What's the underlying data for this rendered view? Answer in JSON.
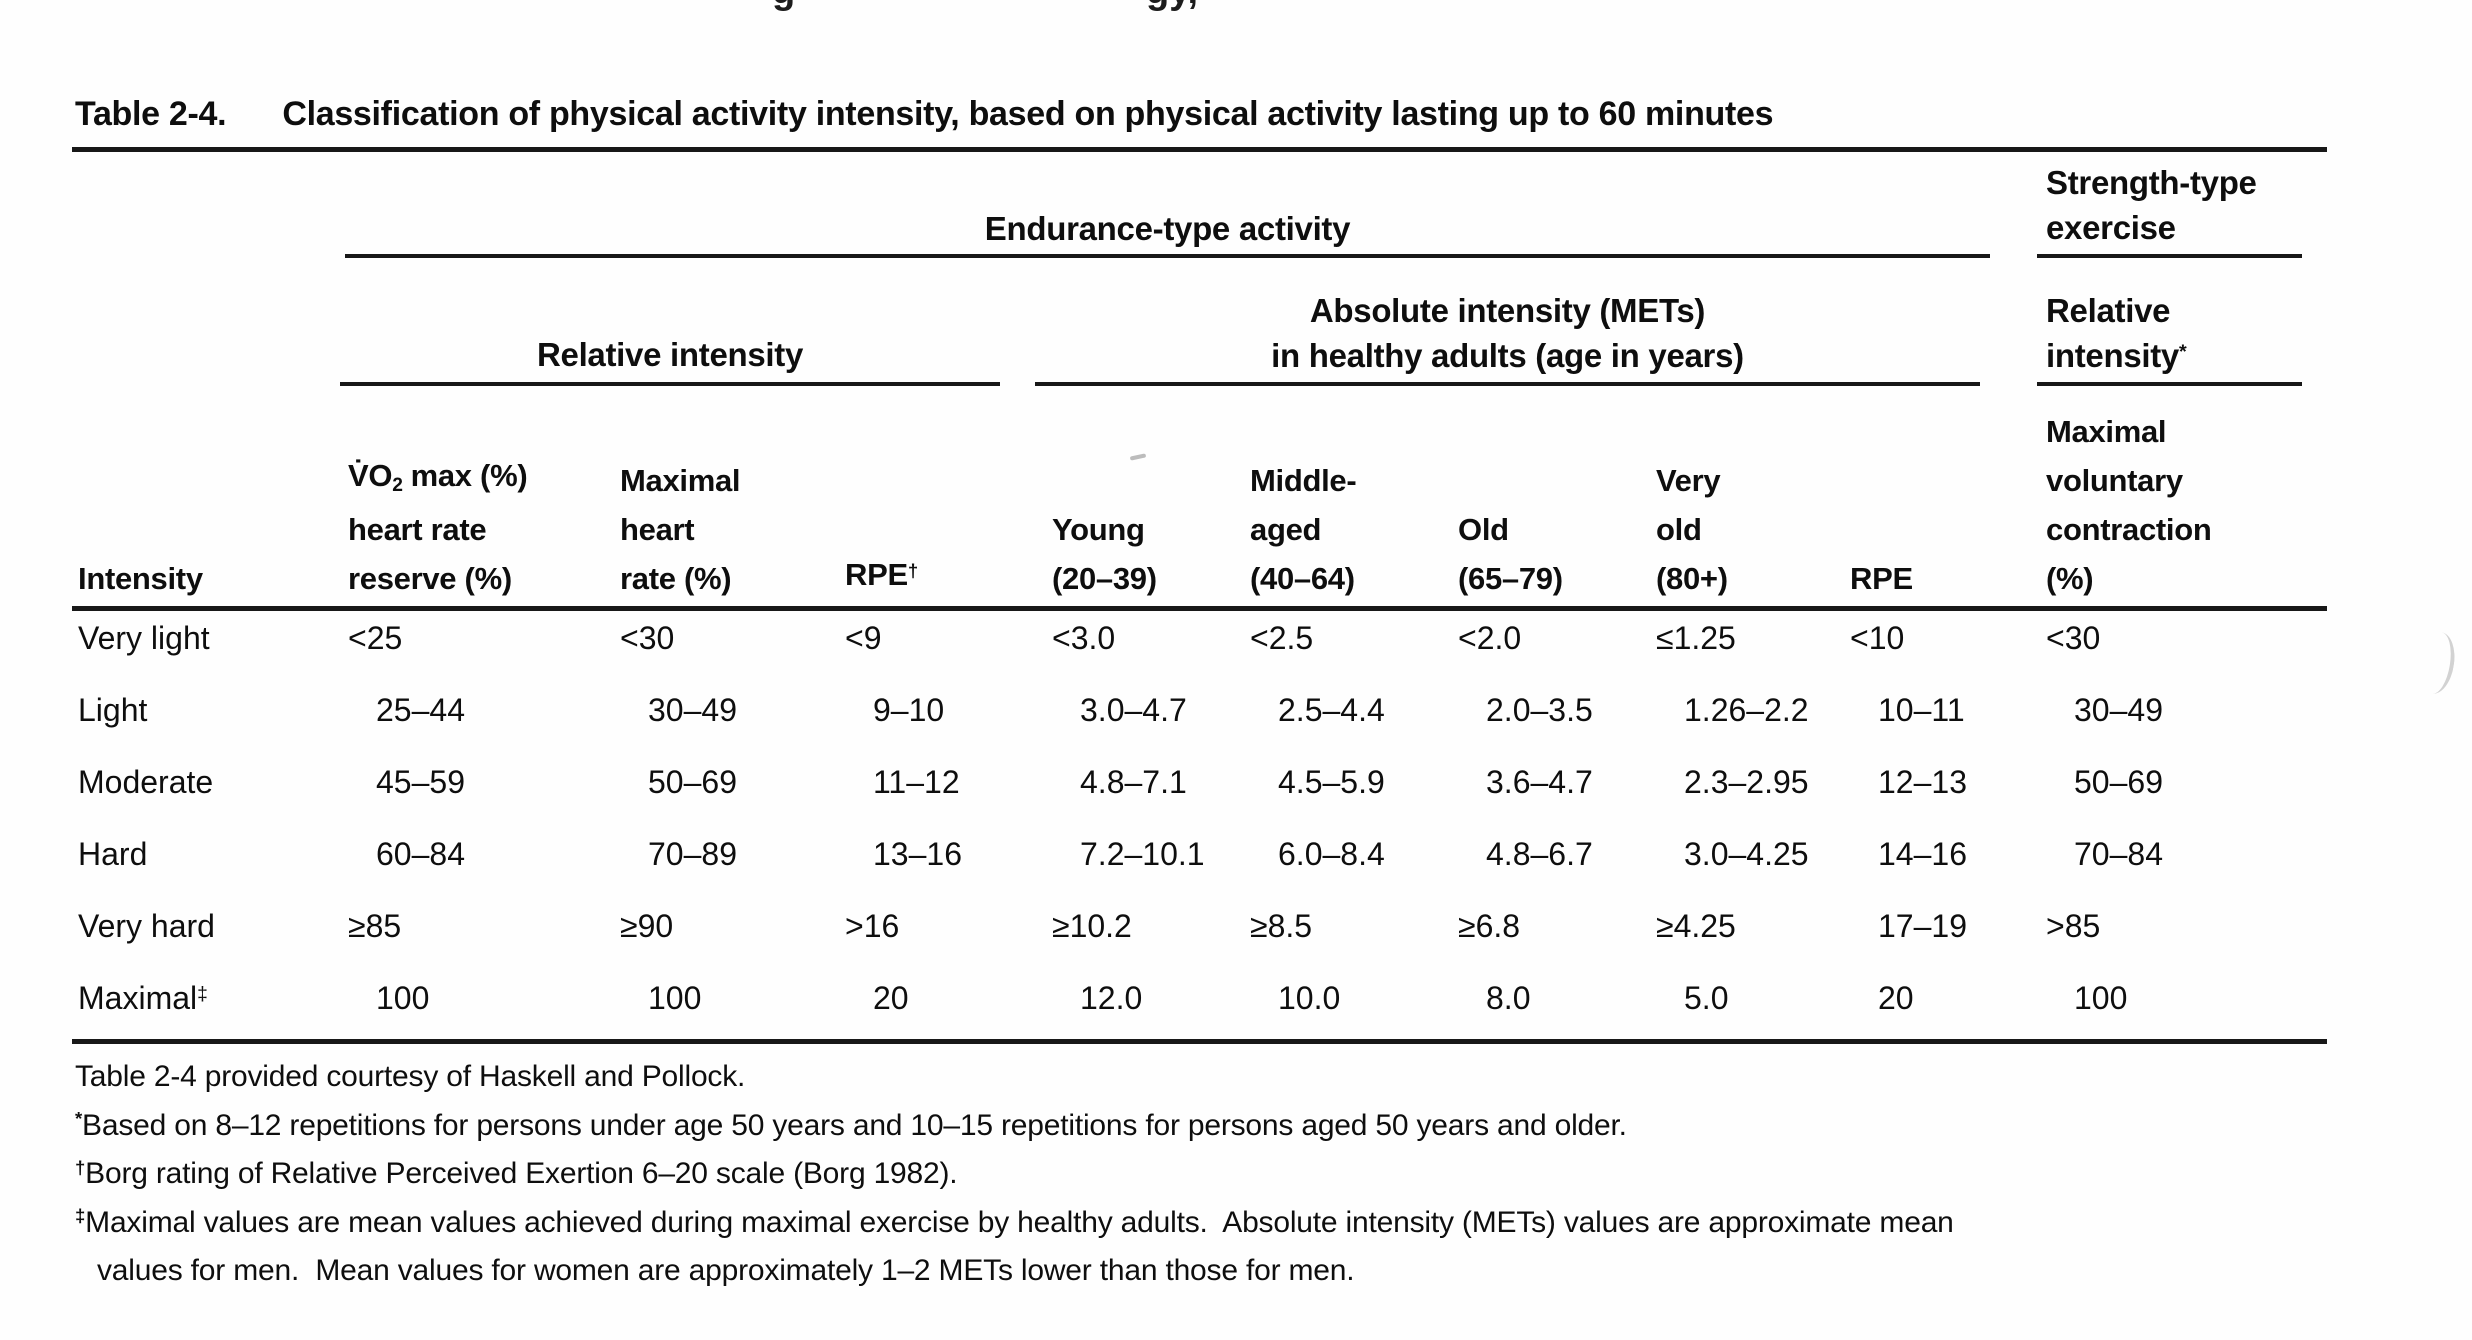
{
  "title": {
    "label": "Table 2-4.",
    "caption": "Classification of physical activity intensity, based on physical activity lasting up to 60 minutes"
  },
  "group_headers": {
    "endurance": "Endurance-type activity",
    "strength_line1": "Strength-type",
    "strength_line2": "exercise",
    "relative": "Relative intensity",
    "absolute_line1": "Absolute intensity (METs)",
    "absolute_line2": "in healthy adults (age in years)",
    "strength_relative_line1": "Relative",
    "strength_relative_line2": "intensity",
    "strength_relative_sup": "*"
  },
  "col_headers": {
    "intensity": "Intensity",
    "vo2_line1_main": "V̇O",
    "vo2_line1_sub": "2",
    "vo2_line1_rest": "max (%)",
    "vo2_line2": "heart rate",
    "vo2_line3": "reserve (%)",
    "mhr_line1": "Maximal",
    "mhr_line2": "heart",
    "mhr_line3": "rate (%)",
    "rpe_borg_label": "RPE",
    "rpe_borg_sup": "†",
    "young_line1": "Young",
    "young_line2": "(20–39)",
    "middle_line1": "Middle-",
    "middle_line2": "aged",
    "middle_line3": "(40–64)",
    "old_line1": "Old",
    "old_line2": "(65–79)",
    "veryold_line1": "Very",
    "veryold_line2": "old",
    "veryold_line3": "(80+)",
    "rpe2": "RPE",
    "mvc_line1": "Maximal",
    "mvc_line2": "voluntary",
    "mvc_line3": "contraction",
    "mvc_line4": "(%)"
  },
  "rows": [
    {
      "label": "Very light",
      "cells": [
        "<25",
        "<30",
        "<9",
        "<3.0",
        "<2.5",
        "<2.0",
        "≤1.25",
        "<10",
        "<30"
      ]
    },
    {
      "label": "Light",
      "cells": [
        "25–44",
        "30–49",
        "9–10",
        "3.0–4.7",
        "2.5–4.4",
        "2.0–3.5",
        "1.26–2.2",
        "10–11",
        "30–49"
      ]
    },
    {
      "label": "Moderate",
      "cells": [
        "45–59",
        "50–69",
        "11–12",
        "4.8–7.1",
        "4.5–5.9",
        "3.6–4.7",
        "2.3–2.95",
        "12–13",
        "50–69"
      ]
    },
    {
      "label": "Hard",
      "cells": [
        "60–84",
        "70–89",
        "13–16",
        "7.2–10.1",
        "6.0–8.4",
        "4.8–6.7",
        "3.0–4.25",
        "14–16",
        "70–84"
      ]
    },
    {
      "label": "Very hard",
      "cells": [
        "≥85",
        "≥90",
        ">16",
        "≥10.2",
        "≥8.5",
        "≥6.8",
        "≥4.25",
        "17–19",
        ">85"
      ]
    },
    {
      "label": "Maximal",
      "sup": "‡",
      "cells": [
        "100",
        "100",
        "20",
        "12.0",
        "10.0",
        "8.0",
        "5.0",
        "20",
        "100"
      ]
    }
  ],
  "footnotes": [
    {
      "marker": "",
      "lines": [
        "Table 2-4 provided courtesy of Haskell and Pollock."
      ]
    },
    {
      "marker": "*",
      "lines": [
        "Based on 8–12 repetitions for persons under age 50 years and 10–15 repetitions for persons aged 50 years and older."
      ]
    },
    {
      "marker": "†",
      "lines": [
        "Borg rating of Relative Perceived Exertion 6–20 scale (Borg 1982)."
      ]
    },
    {
      "marker": "‡",
      "lines": [
        "Maximal values are mean values achieved during maximal exercise by healthy adults.  Absolute intensity (METs) values are approximate mean",
        "values for men.  Mean values for women are approximately 1–2 METs lower than those for men."
      ]
    }
  ],
  "fragments": {
    "f1": "g",
    "f2": "gy,",
    "f3": "’"
  },
  "colors": {
    "ink": "#0e0e0e",
    "rule": "#181818",
    "paper": "#fefefe"
  }
}
